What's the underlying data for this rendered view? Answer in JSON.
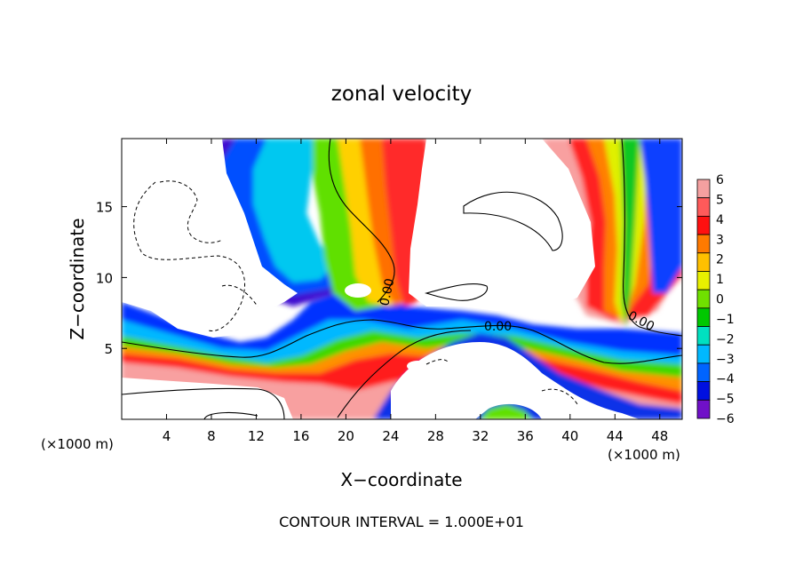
{
  "chart_data": {
    "type": "heatmap",
    "title": "zonal velocity",
    "xlabel": "X−coordinate",
    "ylabel": "Z−coordinate",
    "x_unit_left": "(×1000 m)",
    "x_unit_right": "(×1000 m)",
    "footer": "CONTOUR INTERVAL = 1.000E+01",
    "xlim": [
      0,
      50
    ],
    "ylim": [
      0,
      19.8
    ],
    "x_ticks": [
      4,
      8,
      12,
      16,
      20,
      24,
      28,
      32,
      36,
      40,
      44,
      48
    ],
    "x_tick_labels": [
      "4",
      "8",
      "12",
      "16",
      "20",
      "24",
      "28",
      "32",
      "36",
      "40",
      "44",
      "48"
    ],
    "y_ticks": [
      5,
      10,
      15
    ],
    "y_tick_labels": [
      "5",
      "10",
      "15"
    ],
    "contour_labels": [
      "0.00",
      "0.00",
      "0.00"
    ],
    "colorbar": {
      "levels": [
        6,
        5,
        4,
        3,
        2,
        1,
        0,
        -1,
        -2,
        -3,
        -4,
        -5,
        -6
      ],
      "labels": [
        "6",
        "5",
        "4",
        "3",
        "2",
        "1",
        "0",
        "−1",
        "−2",
        "−3",
        "−4",
        "−5",
        "−6"
      ],
      "colors": [
        "#f4a0a0",
        "#ff5a5a",
        "#ff1010",
        "#ff7a00",
        "#ffc000",
        "#e8f000",
        "#70e000",
        "#00c800",
        "#00e0c0",
        "#00b8ff",
        "#0064ff",
        "#0010e0",
        "#7010c8"
      ]
    }
  }
}
